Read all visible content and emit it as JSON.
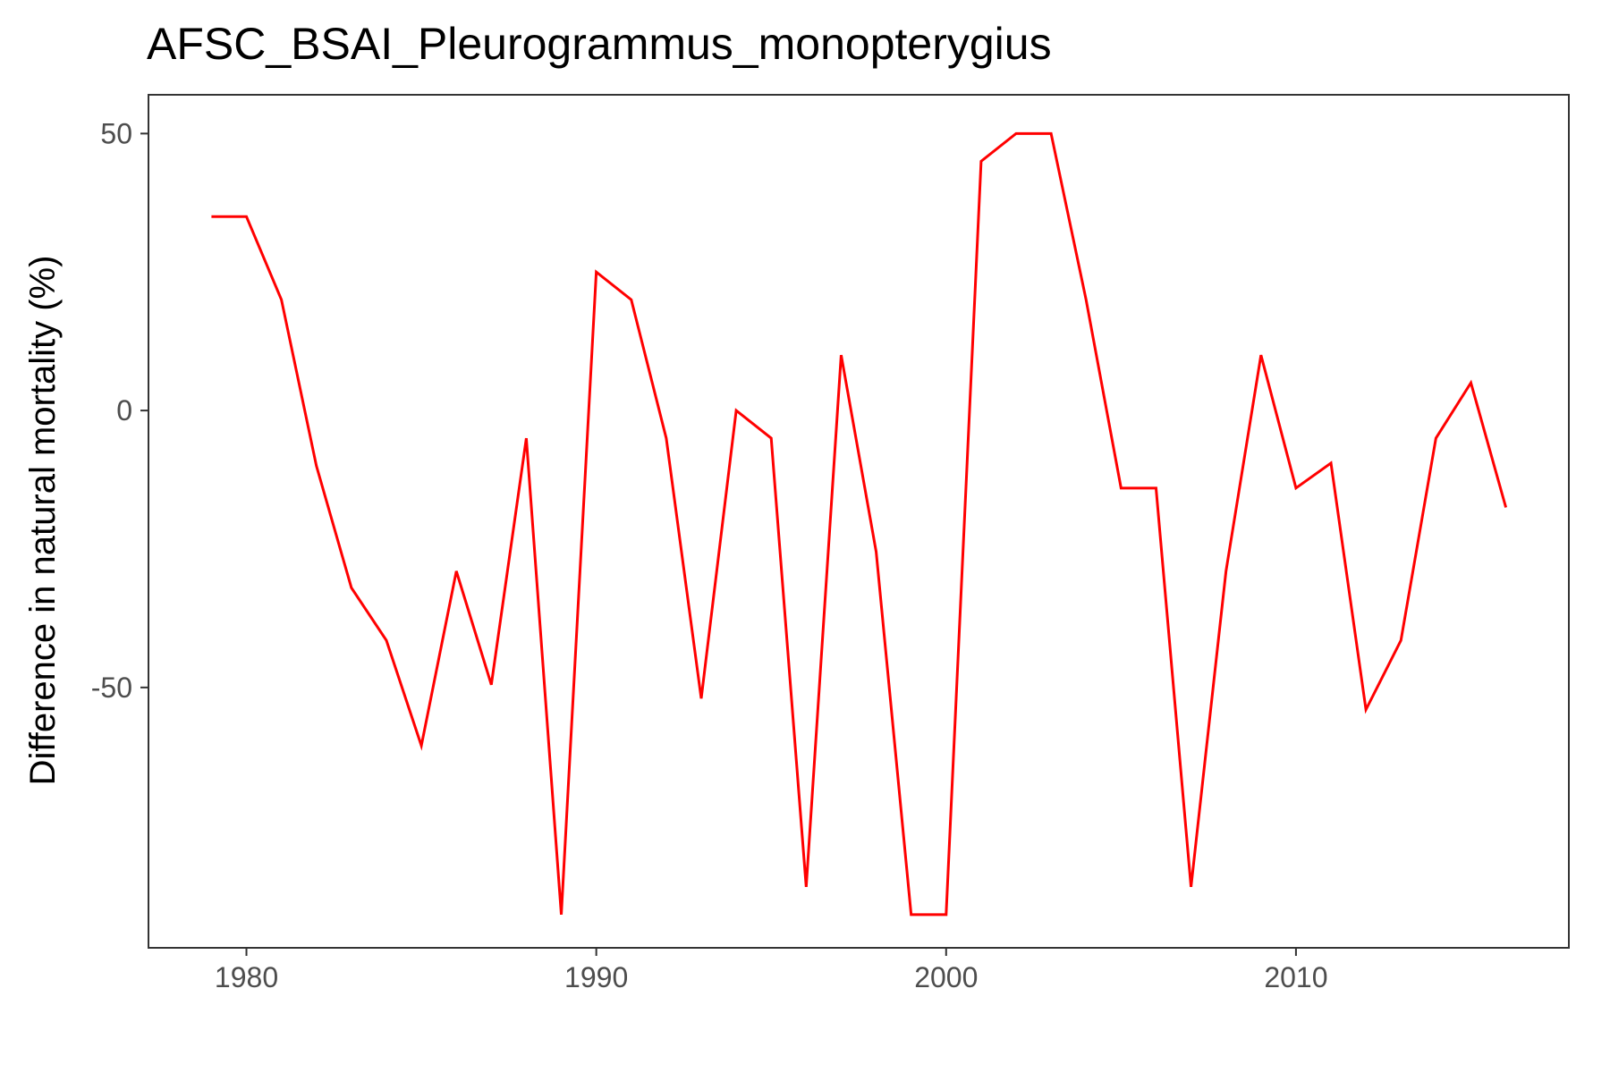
{
  "chart_data": {
    "type": "line",
    "title": "AFSC_BSAI_Pleurogrammus_monopterygius",
    "xlabel": "",
    "ylabel": "Difference in natural mortality (%)",
    "xlim": [
      1977.2,
      2017.8
    ],
    "ylim": [
      -97,
      57
    ],
    "x_ticks": [
      1980,
      1990,
      2000,
      2010
    ],
    "x_tick_labels": [
      "1980",
      "1990",
      "2000",
      "2010"
    ],
    "y_ticks": [
      -50,
      0,
      50
    ],
    "y_tick_labels": [
      "-50",
      "0",
      "50"
    ],
    "grid": false,
    "legend": "none",
    "line_color": "#ff0000",
    "series": [
      {
        "x": [
          1979,
          1980,
          1981,
          1982,
          1983,
          1984,
          1985,
          1986,
          1987,
          1988,
          1989,
          1990,
          1991,
          1992,
          1993,
          1994,
          1995,
          1996,
          1997,
          1998,
          1999,
          2000,
          2001,
          2002,
          2003,
          2004,
          2005,
          2006,
          2007,
          2008,
          2009,
          2010,
          2011,
          2012,
          2013,
          2014,
          2015,
          2016
        ],
        "values": [
          35,
          35,
          20,
          -10,
          -32,
          -41.5,
          -60.5,
          -29,
          -49.5,
          -5,
          -91,
          25,
          20,
          -5,
          -52,
          0,
          -5,
          -86,
          10,
          -25.5,
          -91,
          -91,
          45,
          50,
          50,
          20,
          -14,
          -14,
          -86,
          -29,
          10,
          -14,
          -9.5,
          -54,
          -41.5,
          -5,
          5,
          -17.5
        ]
      }
    ]
  }
}
